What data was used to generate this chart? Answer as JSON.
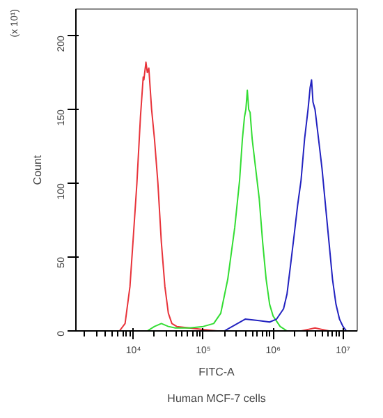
{
  "chart_data": {
    "type": "line",
    "xlabel": "FITC-A",
    "ylabel": "Count",
    "log": "x",
    "xlim": [
      1500,
      16000000
    ],
    "ylim": [
      0,
      218
    ],
    "xticks": [
      {
        "value": 10000,
        "label": "10⁴"
      },
      {
        "value": 100000,
        "label": "10⁵"
      },
      {
        "value": 1000000,
        "label": "10⁶"
      },
      {
        "value": 10000000,
        "label": "10⁷"
      }
    ],
    "yticks": [
      0,
      50,
      100,
      150,
      200
    ],
    "grid": false,
    "marker": "none",
    "line_style": "solid",
    "annotations": [
      "(x 10¹)",
      "Human MCF-7 cells"
    ],
    "series": [
      {
        "color": "#e8333a",
        "x": [
          6310,
          7590,
          8910,
          10000,
          11200,
          12600,
          13800,
          14100,
          14500,
          15100,
          15800,
          16600,
          18200,
          20000,
          22400,
          25100,
          28200,
          31600,
          35500,
          41700,
          63100,
          100000,
          158000,
          2510000,
          3160000,
          3980000,
          5010000,
          6310000
        ],
        "values": [
          0,
          5,
          30,
          65,
          100,
          145,
          172,
          170,
          175,
          182,
          175,
          178,
          150,
          130,
          100,
          60,
          30,
          12,
          5,
          3,
          2,
          1,
          0,
          0,
          1,
          2,
          1,
          0
        ]
      },
      {
        "color": "#33dd33",
        "x": [
          15800,
          20000,
          25100,
          31600,
          39800,
          63100,
          100000,
          141000,
          178000,
          224000,
          282000,
          331000,
          363000,
          389000,
          407000,
          427000,
          447000,
          468000,
          501000,
          562000,
          631000,
          708000,
          794000,
          891000,
          1000000,
          1260000,
          1580000
        ],
        "values": [
          0,
          3,
          5,
          3,
          2,
          2,
          3,
          5,
          12,
          35,
          70,
          102,
          130,
          145,
          150,
          163,
          150,
          148,
          130,
          110,
          90,
          60,
          35,
          18,
          10,
          3,
          0
        ]
      },
      {
        "color": "#2222c0",
        "x": [
          200000,
          282000,
          398000,
          631000,
          891000,
          1120000,
          1410000,
          1580000,
          1780000,
          2000000,
          2240000,
          2510000,
          2820000,
          3160000,
          3390000,
          3550000,
          3720000,
          3980000,
          4470000,
          5010000,
          5620000,
          6310000,
          7080000,
          7940000,
          8910000,
          10000000,
          11200000
        ],
        "values": [
          0,
          4,
          8,
          7,
          6,
          8,
          15,
          25,
          45,
          65,
          85,
          102,
          130,
          150,
          165,
          170,
          155,
          150,
          130,
          110,
          85,
          60,
          35,
          18,
          8,
          3,
          0
        ]
      }
    ]
  }
}
